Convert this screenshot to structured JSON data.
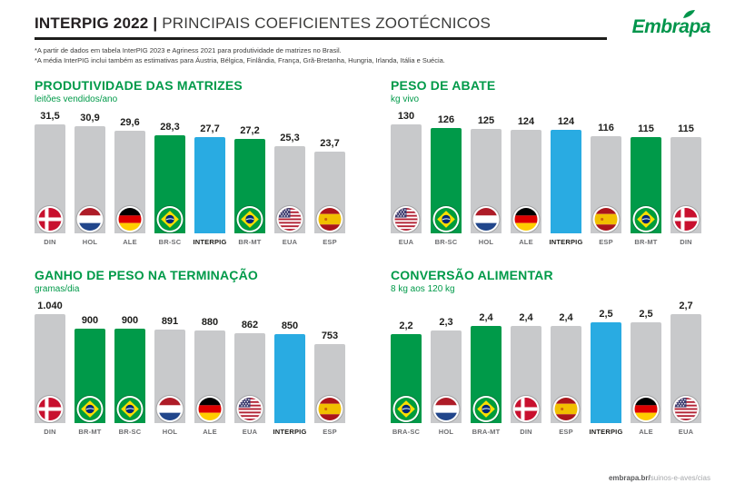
{
  "header": {
    "title_bold": "INTERPIG 2022 |",
    "title_rest": " PRINCIPAIS COEFICIENTES ZOOTÉCNICOS",
    "logo_text": "Embrapa"
  },
  "notes": [
    "*A partir de dados em tabela InterPIG 2023 e Agriness 2021 para produtividade de matrizes no Brasil.",
    "*A média InterPIG inclui também as estimativas para Áustria, Bélgica, Finlândia, França, Grã-Bretanha, Hungria, Irlanda, Itália e Suécia."
  ],
  "footer": {
    "bold": "embrapa.br/",
    "rest": "suinos-e-aves/cias"
  },
  "colors": {
    "gray": "#C8C9CB",
    "green": "#009A49",
    "blue": "#29ABE2",
    "title_green": "#009A49",
    "text_dark": "#1d1d1b"
  },
  "chart_data": [
    {
      "type": "bar",
      "title": "PRODUTIVIDADE DAS MATRIZES",
      "subtitle": "leitões vendidos/ano",
      "categories": [
        "DIN",
        "HOL",
        "ALE",
        "BR-SC",
        "INTERPIG",
        "BR-MT",
        "EUA",
        "ESP"
      ],
      "values": [
        31.5,
        30.9,
        29.6,
        28.3,
        27.7,
        27.2,
        25.3,
        23.7
      ],
      "value_labels": [
        "31,5",
        "30,9",
        "29,6",
        "28,3",
        "27,7",
        "27,2",
        "25,3",
        "23,7"
      ],
      "bar_colors": [
        "gray",
        "gray",
        "gray",
        "green",
        "blue",
        "green",
        "gray",
        "gray"
      ],
      "flags": [
        "din",
        "hol",
        "ale",
        "bra",
        "none",
        "bra",
        "eua",
        "esp"
      ],
      "highlight_category": "INTERPIG",
      "ylim": [
        0,
        31.5
      ],
      "grid": false,
      "legend": false
    },
    {
      "type": "bar",
      "title": "PESO DE ABATE",
      "subtitle": "kg vivo",
      "categories": [
        "EUA",
        "BR-SC",
        "HOL",
        "ALE",
        "INTERPIG",
        "ESP",
        "BR-MT",
        "DIN"
      ],
      "values": [
        130,
        126,
        125,
        124,
        124,
        116,
        115,
        115
      ],
      "value_labels": [
        "130",
        "126",
        "125",
        "124",
        "124",
        "116",
        "115",
        "115"
      ],
      "bar_colors": [
        "gray",
        "green",
        "gray",
        "gray",
        "blue",
        "gray",
        "green",
        "gray"
      ],
      "flags": [
        "eua",
        "bra",
        "hol",
        "ale",
        "none",
        "esp",
        "bra",
        "din"
      ],
      "highlight_category": "INTERPIG",
      "ylim": [
        0,
        130
      ],
      "grid": false,
      "legend": false
    },
    {
      "type": "bar",
      "title": "GANHO DE PESO NA TERMINAÇÃO",
      "subtitle": "gramas/dia",
      "categories": [
        "DIN",
        "BR-MT",
        "BR-SC",
        "HOL",
        "ALE",
        "EUA",
        "INTERPIG",
        "ESP"
      ],
      "values": [
        1040,
        900,
        900,
        891,
        880,
        862,
        850,
        753
      ],
      "value_labels": [
        "1.040",
        "900",
        "900",
        "891",
        "880",
        "862",
        "850",
        "753"
      ],
      "bar_colors": [
        "gray",
        "green",
        "green",
        "gray",
        "gray",
        "gray",
        "blue",
        "gray"
      ],
      "flags": [
        "din",
        "bra",
        "bra",
        "hol",
        "ale",
        "eua",
        "none",
        "esp"
      ],
      "highlight_category": "INTERPIG",
      "ylim": [
        0,
        1040
      ],
      "grid": false,
      "legend": false
    },
    {
      "type": "bar",
      "title": "CONVERSÃO ALIMENTAR",
      "subtitle": "8 kg aos 120 kg",
      "categories": [
        "BRA-SC",
        "HOL",
        "BRA-MT",
        "DIN",
        "ESP",
        "INTERPIG",
        "ALE",
        "EUA"
      ],
      "values": [
        2.2,
        2.3,
        2.4,
        2.4,
        2.4,
        2.5,
        2.5,
        2.7
      ],
      "value_labels": [
        "2,2",
        "2,3",
        "2,4",
        "2,4",
        "2,4",
        "2,5",
        "2,5",
        "2,7"
      ],
      "bar_colors": [
        "green",
        "gray",
        "green",
        "gray",
        "gray",
        "blue",
        "gray",
        "gray"
      ],
      "flags": [
        "bra",
        "hol",
        "bra",
        "din",
        "esp",
        "none",
        "ale",
        "eua"
      ],
      "highlight_category": "INTERPIG",
      "ylim": [
        0,
        2.7
      ],
      "grid": false,
      "legend": false
    }
  ]
}
